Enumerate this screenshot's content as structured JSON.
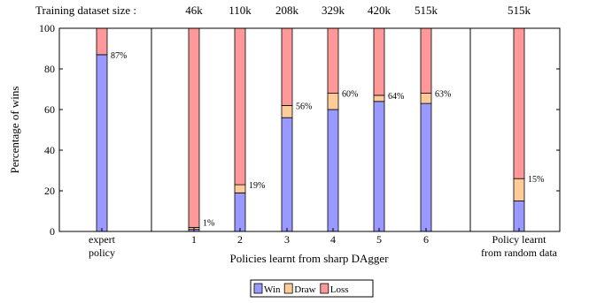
{
  "chart_data": {
    "type": "bar",
    "stacked": true,
    "header_label": "Training dataset size :",
    "ylabel": "Percentage of wins",
    "xlabel": "Policies learnt from sharp DAgger",
    "ylim": [
      0,
      100
    ],
    "yticks": [
      0,
      20,
      40,
      60,
      80,
      100
    ],
    "grid": false,
    "legend_position": "bottom-center",
    "series": [
      {
        "name": "Win",
        "color": "#9999ff"
      },
      {
        "name": "Draw",
        "color": "#ffcc99"
      },
      {
        "name": "Loss",
        "color": "#ff9999"
      }
    ],
    "bars": [
      {
        "id": "expert",
        "label_lines": [
          "expert",
          "policy"
        ],
        "dataset_size": "",
        "win": 87,
        "draw": 0,
        "loss": 13,
        "annotation": "87%"
      },
      {
        "id": "p1",
        "label_lines": [
          "1"
        ],
        "dataset_size": "46k",
        "win": 1,
        "draw": 1,
        "loss": 98,
        "annotation": "1%"
      },
      {
        "id": "p2",
        "label_lines": [
          "2"
        ],
        "dataset_size": "110k",
        "win": 19,
        "draw": 4,
        "loss": 77,
        "annotation": "19%"
      },
      {
        "id": "p3",
        "label_lines": [
          "3"
        ],
        "dataset_size": "208k",
        "win": 56,
        "draw": 6,
        "loss": 38,
        "annotation": "56%"
      },
      {
        "id": "p4",
        "label_lines": [
          "4"
        ],
        "dataset_size": "329k",
        "win": 60,
        "draw": 8,
        "loss": 32,
        "annotation": "60%"
      },
      {
        "id": "p5",
        "label_lines": [
          "5"
        ],
        "dataset_size": "420k",
        "win": 64,
        "draw": 3,
        "loss": 33,
        "annotation": "64%"
      },
      {
        "id": "p6",
        "label_lines": [
          "6"
        ],
        "dataset_size": "515k",
        "win": 63,
        "draw": 5,
        "loss": 32,
        "annotation": "63%"
      },
      {
        "id": "random",
        "label_lines": [
          "Policy learnt",
          "from random data"
        ],
        "dataset_size": "515k",
        "win": 15,
        "draw": 11,
        "loss": 74,
        "annotation": "15%"
      }
    ]
  }
}
